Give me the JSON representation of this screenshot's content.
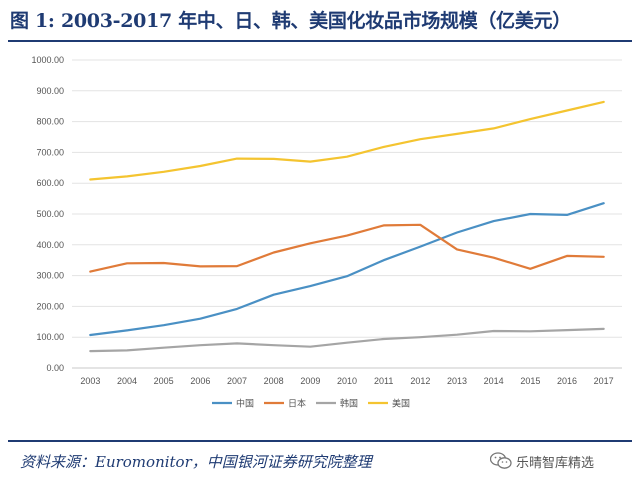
{
  "title": "图 1: 2003-2017 年中、日、韩、美国化妆品市场规模（亿美元）",
  "source": "资料来源：Euromonitor，中国银河证券研究院整理",
  "watermark": "乐晴智库精选",
  "chart_data": {
    "type": "line",
    "title": "",
    "xlabel": "",
    "ylabel": "",
    "ylim": [
      0,
      1000
    ],
    "yticks": [
      "0.00",
      "100.00",
      "200.00",
      "300.00",
      "400.00",
      "500.00",
      "600.00",
      "700.00",
      "800.00",
      "900.00",
      "1000.00"
    ],
    "categories": [
      "2003",
      "2004",
      "2005",
      "2006",
      "2007",
      "2008",
      "2009",
      "2010",
      "2011",
      "2012",
      "2013",
      "2014",
      "2015",
      "2016",
      "2017"
    ],
    "grid": true,
    "legend_position": "bottom",
    "series": [
      {
        "name": "中国",
        "color": "#4a90c4",
        "values": [
          107,
          122,
          139,
          160,
          192,
          238,
          266,
          298,
          350,
          394,
          440,
          477,
          500,
          497,
          535
        ]
      },
      {
        "name": "日本",
        "color": "#e07b39",
        "values": [
          313,
          340,
          341,
          330,
          331,
          375,
          405,
          430,
          463,
          465,
          385,
          358,
          322,
          364,
          361
        ]
      },
      {
        "name": "韩国",
        "color": "#a5a5a5",
        "values": [
          55,
          57,
          66,
          74,
          80,
          74,
          69,
          82,
          94,
          100,
          108,
          120,
          119,
          123,
          127
        ]
      },
      {
        "name": "美国",
        "color": "#f4c430",
        "values": [
          612,
          622,
          637,
          656,
          680,
          679,
          670,
          686,
          718,
          743,
          760,
          778,
          808,
          836,
          864
        ]
      }
    ]
  }
}
